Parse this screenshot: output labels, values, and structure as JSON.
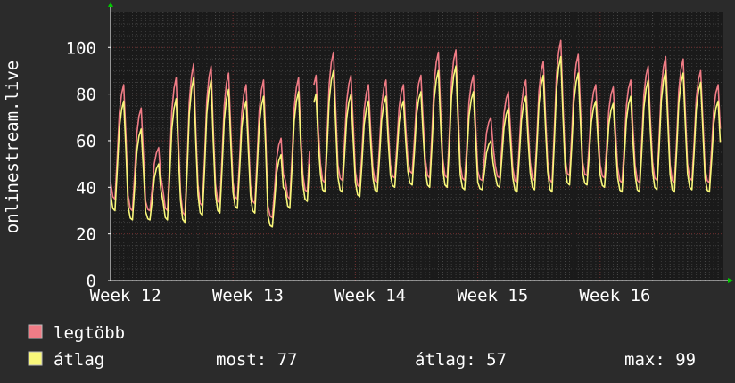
{
  "chart_data": {
    "type": "line",
    "ylabel": "onlinestream.live",
    "xlabel": "",
    "title": "",
    "ylim": [
      0,
      115
    ],
    "yticks": [
      0,
      20,
      40,
      60,
      80,
      100
    ],
    "xtick_labels": [
      "Week 12",
      "Week 13",
      "Week 14",
      "Week 15",
      "Week 16"
    ],
    "grid": true,
    "legend_position": "bottom-left",
    "days": 35,
    "samples_per_day": 8,
    "series": [
      {
        "name": "legtöbb",
        "color": "#f07c86",
        "daily_peaks": [
          84,
          74,
          57,
          87,
          93,
          92,
          89,
          84,
          86,
          61,
          87,
          88,
          98,
          88,
          84,
          86,
          84,
          88,
          98,
          99,
          88,
          70,
          81,
          86,
          94,
          103,
          97,
          84,
          83,
          86,
          92,
          96,
          95,
          90,
          84
        ],
        "daily_lows": [
          35,
          30,
          30,
          30,
          28,
          32,
          33,
          35,
          33,
          27,
          35,
          38,
          42,
          43,
          40,
          42,
          44,
          46,
          44,
          44,
          43,
          43,
          44,
          42,
          43,
          42,
          45,
          45,
          44,
          42,
          42,
          43,
          42,
          43,
          42
        ]
      },
      {
        "name": "átlag",
        "color": "#f8f77a",
        "daily_peaks": [
          77,
          65,
          50,
          78,
          87,
          86,
          82,
          77,
          79,
          54,
          81,
          80,
          90,
          80,
          77,
          79,
          77,
          81,
          90,
          92,
          81,
          60,
          74,
          79,
          88,
          96,
          89,
          77,
          76,
          79,
          86,
          90,
          89,
          85,
          77
        ],
        "daily_lows": [
          30,
          26,
          26,
          26,
          25,
          28,
          29,
          31,
          29,
          23,
          31,
          34,
          38,
          38,
          36,
          38,
          40,
          41,
          40,
          40,
          39,
          39,
          40,
          38,
          39,
          38,
          41,
          41,
          40,
          38,
          38,
          39,
          38,
          39,
          38
        ]
      }
    ],
    "gap": {
      "from_day": 11.4,
      "to_day": 11.55
    }
  },
  "legend": {
    "items": [
      {
        "label": "legtöbb",
        "color": "#f07c86"
      },
      {
        "label": "átlag",
        "color": "#f8f77a"
      }
    ],
    "stats": {
      "now": "most: 77",
      "avg": "átlag: 57",
      "max": "max: 99"
    }
  },
  "colors": {
    "background": "#2b2b2b",
    "plot_background": "#1a1a1a",
    "grid_minor": "#3c3c3c",
    "grid_major": "#6a2c2c",
    "axis": "#ffffff",
    "arrow": "#00c800"
  }
}
